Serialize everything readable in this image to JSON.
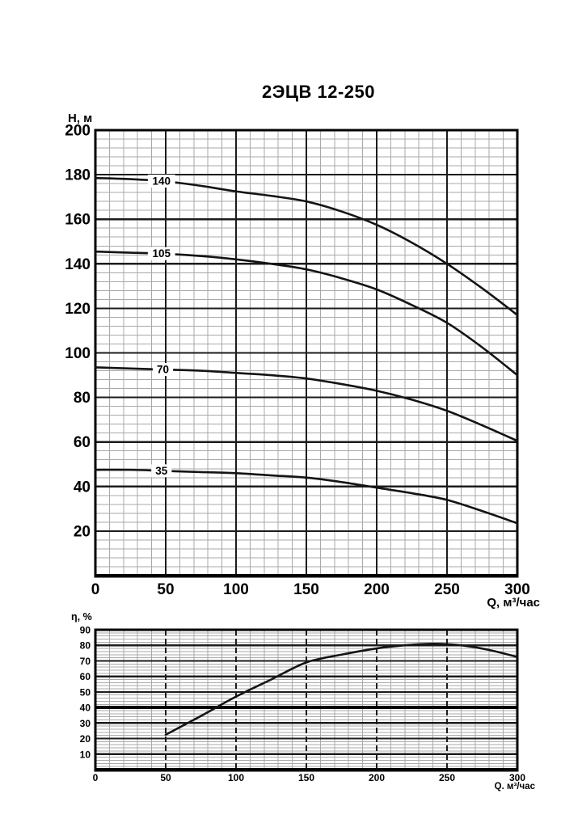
{
  "title": "2ЭЦВ 12-250",
  "colors": {
    "background": "#ffffff",
    "curve": "#141414",
    "grid_minor": "#a9a9a9",
    "grid_major": "#1c1c1c",
    "bold_reference_line": "#000000"
  },
  "chart_data": [
    {
      "type": "line",
      "name": "head-vs-flow",
      "title": "2ЭЦВ 12-250",
      "xlabel": "Q, м³/час",
      "ylabel": "Н, м",
      "xlim": [
        0,
        300
      ],
      "ylim": [
        0,
        200
      ],
      "x_major": 50,
      "x_minor": 10,
      "y_major": 20,
      "y_minor": 4,
      "x_ticks": [
        0,
        50,
        100,
        150,
        200,
        250,
        300
      ],
      "y_ticks": [
        200,
        180,
        160,
        140,
        120,
        100,
        80,
        60,
        40,
        20
      ],
      "grid": true,
      "legend": "labels-on-curves",
      "series": [
        {
          "name": "140",
          "label_q": 47,
          "points": [
            [
              0,
              178.5
            ],
            [
              25,
              178
            ],
            [
              50,
              177
            ],
            [
              75,
              175
            ],
            [
              100,
              172.5
            ],
            [
              125,
              170.5
            ],
            [
              150,
              168
            ],
            [
              175,
              163.5
            ],
            [
              200,
              157.5
            ],
            [
              225,
              149.5
            ],
            [
              250,
              140
            ],
            [
              275,
              129
            ],
            [
              300,
              117
            ]
          ]
        },
        {
          "name": "105",
          "label_q": 47,
          "points": [
            [
              0,
              145.5
            ],
            [
              25,
              145
            ],
            [
              50,
              144.5
            ],
            [
              75,
              143.5
            ],
            [
              100,
              142
            ],
            [
              125,
              140
            ],
            [
              150,
              137.5
            ],
            [
              175,
              133.5
            ],
            [
              200,
              128.5
            ],
            [
              225,
              121.5
            ],
            [
              250,
              113.5
            ],
            [
              275,
              102.5
            ],
            [
              300,
              90
            ]
          ]
        },
        {
          "name": "70",
          "label_q": 48,
          "points": [
            [
              0,
              93.5
            ],
            [
              25,
              93
            ],
            [
              50,
              92.5
            ],
            [
              75,
              92
            ],
            [
              100,
              91
            ],
            [
              125,
              90
            ],
            [
              150,
              88.5
            ],
            [
              175,
              86
            ],
            [
              200,
              83
            ],
            [
              225,
              79
            ],
            [
              250,
              74
            ],
            [
              275,
              67.5
            ],
            [
              300,
              60.5
            ]
          ]
        },
        {
          "name": "35",
          "label_q": 47,
          "points": [
            [
              0,
              47.5
            ],
            [
              25,
              47.5
            ],
            [
              50,
              47
            ],
            [
              75,
              46.5
            ],
            [
              100,
              46
            ],
            [
              125,
              45
            ],
            [
              150,
              44
            ],
            [
              175,
              42
            ],
            [
              200,
              39.5
            ],
            [
              225,
              37
            ],
            [
              250,
              34
            ],
            [
              275,
              29
            ],
            [
              300,
              23.5
            ]
          ]
        }
      ]
    },
    {
      "type": "line",
      "name": "efficiency-vs-flow",
      "title": "",
      "xlabel": "Q. м³/час",
      "ylabel": "η, %",
      "xlim": [
        0,
        300
      ],
      "ylim": [
        0,
        90
      ],
      "x_major": 50,
      "x_minor": 10,
      "y_major": 10,
      "y_minor": 2,
      "x_ticks": [
        0,
        50,
        100,
        150,
        200,
        250,
        300
      ],
      "y_ticks": [
        90,
        80,
        70,
        60,
        50,
        40,
        30,
        20,
        10
      ],
      "bold_y": 40,
      "grid": true,
      "series": [
        {
          "name": "η",
          "points": [
            [
              50,
              22.5
            ],
            [
              75,
              34.5
            ],
            [
              100,
              47
            ],
            [
              125,
              58
            ],
            [
              150,
              69
            ],
            [
              175,
              74
            ],
            [
              200,
              78
            ],
            [
              220,
              80
            ],
            [
              240,
              81
            ],
            [
              260,
              80
            ],
            [
              280,
              77
            ],
            [
              300,
              72.5
            ]
          ]
        }
      ]
    }
  ]
}
